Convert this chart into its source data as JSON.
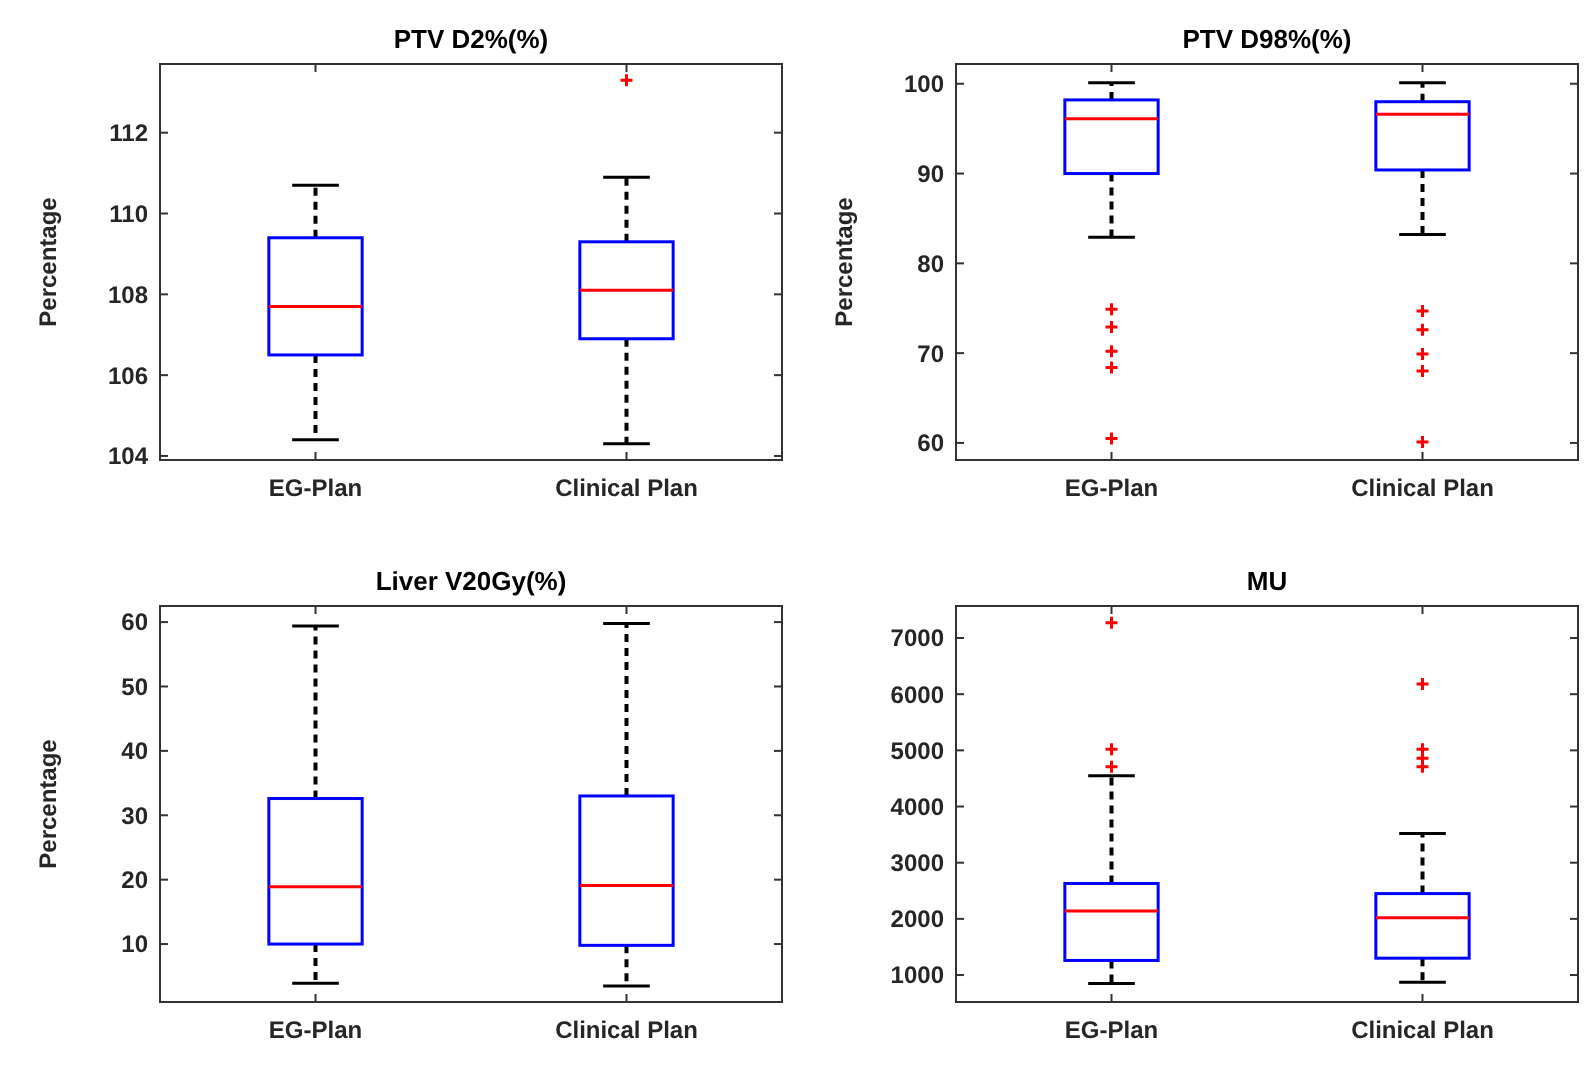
{
  "chart_data": [
    {
      "type": "box",
      "title": "PTV D2%(%)",
      "ylabel": "Percentage",
      "categories": [
        "EG-Plan",
        "Clinical Plan"
      ],
      "ylim": [
        103.9,
        113.7
      ],
      "yticks": [
        104,
        106,
        108,
        110,
        112
      ],
      "series": [
        {
          "color": "#0000ff",
          "boxes": [
            {
              "low": 104.4,
              "q1": 106.5,
              "median": 107.7,
              "q3": 109.4,
              "high": 110.7
            },
            {
              "low": 104.3,
              "q1": 106.9,
              "median": 108.1,
              "q3": 109.3,
              "high": 110.9,
              "outliers": [
                113.3
              ]
            }
          ]
        }
      ]
    },
    {
      "type": "box",
      "title": "PTV D98%(%)",
      "ylabel": "Percentage",
      "categories": [
        "EG-Plan",
        "Clinical Plan"
      ],
      "ylim": [
        58.1,
        102.2
      ],
      "yticks": [
        60,
        70,
        80,
        90,
        100
      ],
      "series": [
        {
          "color": "#0000ff",
          "boxes": [
            {
              "low": 82.9,
              "q1": 90.0,
              "median": 96.1,
              "q3": 98.2,
              "high": 100.1,
              "outliers": [
                74.9,
                72.9,
                70.2,
                68.4,
                60.5
              ]
            },
            {
              "low": 83.2,
              "q1": 90.4,
              "median": 96.6,
              "q3": 98.0,
              "high": 100.1,
              "outliers": [
                74.7,
                72.6,
                69.9,
                68.0,
                60.1
              ]
            }
          ]
        }
      ]
    },
    {
      "type": "box",
      "title": "Liver V20Gy(%)",
      "ylabel": "Percentage",
      "categories": [
        "EG-Plan",
        "Clinical Plan"
      ],
      "ylim": [
        1,
        62.5
      ],
      "yticks": [
        10,
        20,
        30,
        40,
        50,
        60
      ],
      "series": [
        {
          "color": "#0000ff",
          "boxes": [
            {
              "low": 3.9,
              "q1": 10.0,
              "median": 18.9,
              "q3": 32.6,
              "high": 59.4
            },
            {
              "low": 3.5,
              "q1": 9.8,
              "median": 19.1,
              "q3": 33.0,
              "high": 59.8
            }
          ]
        }
      ]
    },
    {
      "type": "box",
      "title": "MU",
      "categories": [
        "EG-Plan",
        "Clinical Plan"
      ],
      "ylim": [
        520,
        7570
      ],
      "yticks": [
        1000,
        2000,
        3000,
        4000,
        5000,
        6000,
        7000
      ],
      "series": [
        {
          "color": "#0000ff",
          "boxes": [
            {
              "low": 850,
              "q1": 1260,
              "median": 2140,
              "q3": 2630,
              "high": 4550,
              "outliers": [
                7270,
                5020,
                4710
              ]
            },
            {
              "low": 870,
              "q1": 1300,
              "median": 2020,
              "q3": 2450,
              "high": 3520,
              "outliers": [
                6180,
                5020,
                4860,
                4710
              ]
            }
          ]
        }
      ]
    }
  ]
}
